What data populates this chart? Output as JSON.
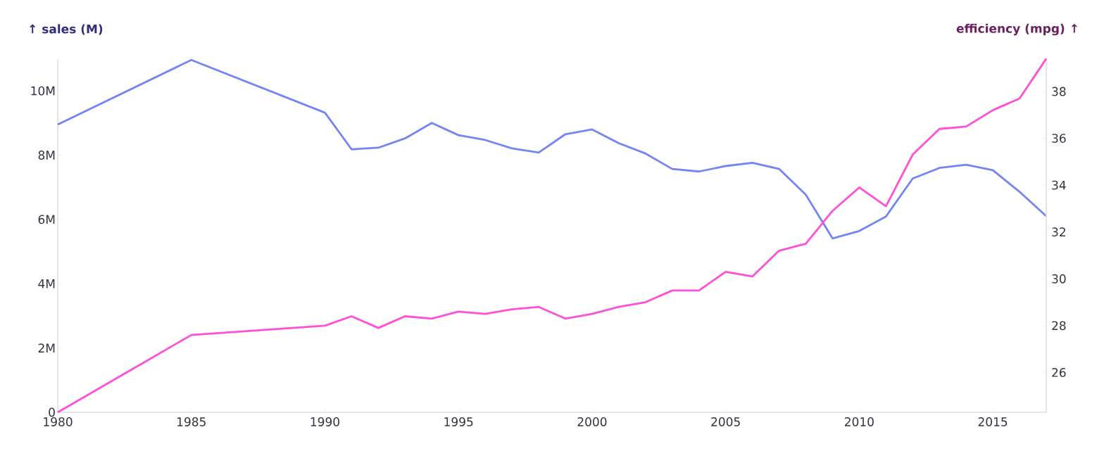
{
  "chart_data": {
    "type": "line",
    "ylabel": "↑ sales (M)",
    "y2label": "efficiency (mpg) ↑",
    "x": [
      1980,
      1985,
      1990,
      1991,
      1992,
      1993,
      1994,
      1995,
      1996,
      1997,
      1998,
      1999,
      2000,
      2001,
      2002,
      2003,
      2004,
      2005,
      2006,
      2007,
      2008,
      2009,
      2010,
      2011,
      2012,
      2013,
      2014,
      2015,
      2016,
      2017
    ],
    "series": [
      {
        "color": "#7384f5",
        "values": [
          8950000,
          10960000,
          9320000,
          8180000,
          8230000,
          8520000,
          9000000,
          8620000,
          8470000,
          8210000,
          8080000,
          8650000,
          8800000,
          8370000,
          8050000,
          7570000,
          7490000,
          7660000,
          7760000,
          7570000,
          6770000,
          5410000,
          5640000,
          6090000,
          7270000,
          7600000,
          7700000,
          7530000,
          6860000,
          6100000
        ]
      },
      {
        "color": "#ff4fd8",
        "axis": "y2",
        "values": [
          24.3,
          27.6,
          28.0,
          28.4,
          27.9,
          28.4,
          28.3,
          28.6,
          28.5,
          28.7,
          28.8,
          28.3,
          28.5,
          28.8,
          29.0,
          29.5,
          29.5,
          30.3,
          30.1,
          31.2,
          31.5,
          32.9,
          33.9,
          33.1,
          35.3,
          36.4,
          36.5,
          37.2,
          37.7,
          39.4
        ]
      }
    ],
    "xlim": [
      1980,
      2017
    ],
    "xticks": [
      1980,
      1985,
      1990,
      1995,
      2000,
      2005,
      2010,
      2015
    ],
    "ylim": [
      0,
      11000000
    ],
    "yticks": [
      {
        "value": 0,
        "label": "0"
      },
      {
        "value": 2000000,
        "label": "2M"
      },
      {
        "value": 4000000,
        "label": "4M"
      },
      {
        "value": 6000000,
        "label": "6M"
      },
      {
        "value": 8000000,
        "label": "8M"
      },
      {
        "value": 10000000,
        "label": "10M"
      }
    ],
    "y2lim": [
      24.3,
      39.4
    ],
    "y2ticks": [
      26,
      28,
      30,
      32,
      34,
      36,
      38
    ],
    "marker": "none",
    "line_style": "solid"
  }
}
